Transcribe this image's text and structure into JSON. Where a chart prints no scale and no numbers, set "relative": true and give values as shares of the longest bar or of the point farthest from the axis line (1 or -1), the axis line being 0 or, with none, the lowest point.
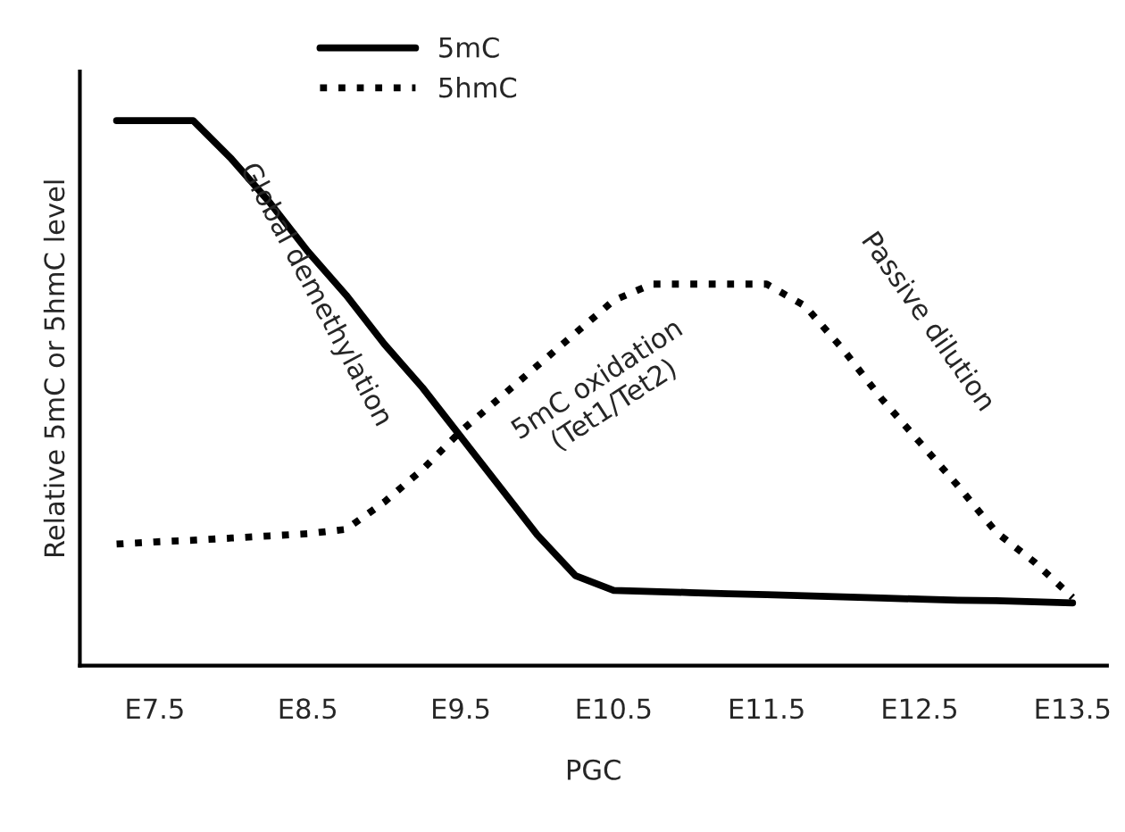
{
  "chart_data": {
    "type": "line",
    "relative": true,
    "xlabel": "PGC",
    "ylabel": "Relative 5mC or 5hmC level",
    "categories": [
      null,
      "E7.5",
      null,
      null,
      null,
      "E8.5",
      null,
      null,
      null,
      "E9.5",
      null,
      null,
      null,
      "E10.5",
      null,
      null,
      null,
      "E11.5",
      null,
      null,
      null,
      "E12.5",
      null,
      null,
      null,
      "E13.5"
    ],
    "legend": "top",
    "series": [
      {
        "name": "5mC",
        "color": "#000000",
        "line_style": "solid",
        "values": [
          1.0,
          1.0,
          1.0,
          0.93,
          0.85,
          0.76,
          0.68,
          0.59,
          0.51,
          0.42,
          0.33,
          0.24,
          0.165,
          0.138,
          0.136,
          0.134,
          0.132,
          0.13,
          0.128,
          0.126,
          0.124,
          0.122,
          0.12,
          0.119,
          0.117,
          0.115
        ]
      },
      {
        "name": "5hmC",
        "color": "#000000",
        "line_style": "dotted",
        "values": [
          0.223,
          0.227,
          0.23,
          0.234,
          0.238,
          0.242,
          0.25,
          0.3,
          0.36,
          0.43,
          0.49,
          0.55,
          0.61,
          0.67,
          0.7,
          0.7,
          0.7,
          0.7,
          0.66,
          0.58,
          0.49,
          0.41,
          0.33,
          0.245,
          0.19,
          0.125
        ]
      }
    ],
    "annotations": [
      "Global demethylation",
      "5mC oxidation\n(Tet1/Tet2)",
      "Passive dilution"
    ]
  }
}
